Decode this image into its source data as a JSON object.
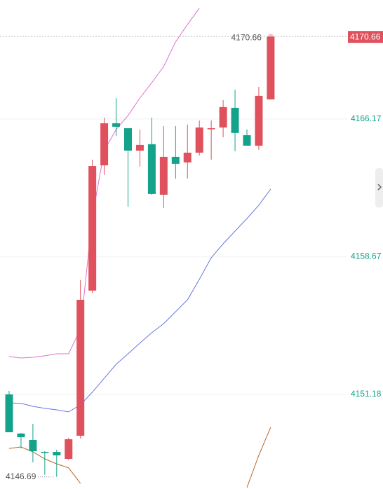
{
  "chart_data": {
    "type": "candlestick",
    "up_color": "#e0515e",
    "down_color": "#14a38a",
    "open": [
      4151.18,
      4149.05,
      4148.7,
      4148.05,
      4148.05,
      4147.67,
      4148.93,
      4156.83,
      4163.65,
      4165.94,
      4165.67,
      4164.45,
      4164.8,
      4162.05,
      4164.11,
      4163.81,
      4164.34,
      4165.64,
      4165.71,
      4166.78,
      4165.29,
      4164.72,
      4167.24
    ],
    "high": [
      4151.37,
      4149.08,
      4149.58,
      4148.09,
      4148.17,
      4148.82,
      4157.4,
      4163.96,
      4166.25,
      4167.31,
      4165.67,
      4165.6,
      4166.25,
      4165.79,
      4165.79,
      4165.87,
      4166.09,
      4166.09,
      4167.2,
      4167.77,
      4165.6,
      4167.92,
      4170.66
    ],
    "low": [
      4149.12,
      4148.24,
      4147.48,
      4146.8,
      4146.69,
      4147.6,
      4148.78,
      4156.71,
      4163.12,
      4165.25,
      4161.4,
      4163.58,
      4162.05,
      4161.33,
      4162.93,
      4162.93,
      4164.19,
      4163.96,
      4165.18,
      4164.42,
      4164.72,
      4164.49,
      4167.24
    ],
    "close": [
      4149.12,
      4148.85,
      4148.09,
      4148.02,
      4147.86,
      4148.74,
      4156.33,
      4163.61,
      4165.94,
      4165.75,
      4164.45,
      4164.76,
      4162.09,
      4164.11,
      4163.73,
      4164.34,
      4165.71,
      4165.67,
      4166.82,
      4165.41,
      4164.72,
      4167.43,
      4170.66
    ],
    "series": [
      {
        "color": "#e070d0",
        "values": [
          4153.24,
          4153.16,
          4153.2,
          4153.28,
          4153.39,
          4153.39,
          4154.73,
          4160.83,
          4164.45,
          4165.6,
          4166.36,
          4167.31,
          4168.15,
          4169.03,
          4170.37,
          4171.32,
          4172.2,
          null,
          null,
          null,
          null,
          null,
          null
        ]
      },
      {
        "color": "#6678e0",
        "values": [
          4150.72,
          4150.69,
          4150.53,
          4150.42,
          4150.34,
          4150.23,
          4150.61,
          4151.3,
          4152.06,
          4152.82,
          4153.39,
          4153.97,
          4154.54,
          4155.03,
          4155.68,
          4156.33,
          4157.44,
          4158.62,
          4159.38,
          4160.07,
          4160.75,
          4161.48,
          4162.36
        ]
      },
      {
        "color": "#b5652d",
        "values": [
          4148.24,
          4148.32,
          4148.05,
          4147.67,
          4147.4,
          4147.18,
          4146.34,
          null,
          null,
          null,
          null,
          null,
          null,
          null,
          null,
          null,
          null,
          null,
          null,
          null,
          4146.11,
          4147.86,
          4149.39
        ]
      }
    ],
    "ylim": [
      4146.03,
      4172.65
    ],
    "yticks": [
      4151.18,
      4158.67,
      4166.17
    ],
    "grid": true,
    "last_price": 4170.66,
    "max_marker": 4170.66,
    "min_marker": 4146.69
  }
}
